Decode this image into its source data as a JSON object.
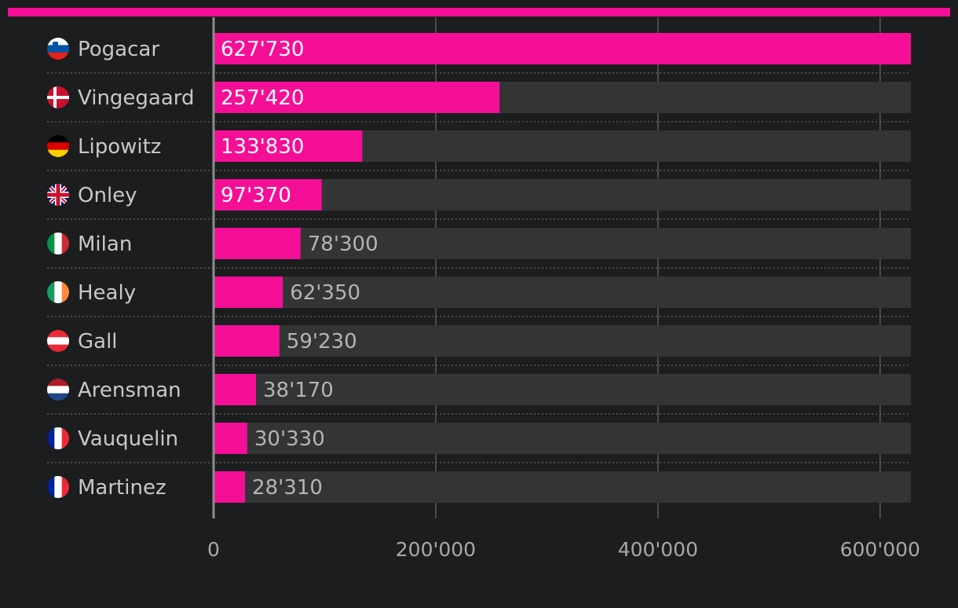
{
  "colors": {
    "background": "#1c1d1f",
    "accent": "#f50f96",
    "track": "#333436",
    "grid": "#5a5b5d",
    "axis": "#8c8c8c",
    "separator": "#5a5b5d"
  },
  "chart_data": {
    "type": "bar",
    "orientation": "horizontal",
    "categories": [
      "Pogacar",
      "Vingegaard",
      "Lipowitz",
      "Onley",
      "Milan",
      "Healy",
      "Gall",
      "Arensman",
      "Vauquelin",
      "Martinez"
    ],
    "values": [
      627730,
      257420,
      133830,
      97370,
      78300,
      62350,
      59230,
      38170,
      30330,
      28310
    ],
    "value_labels": [
      "627'730",
      "257'420",
      "133'830",
      "97'370",
      "78'300",
      "62'350",
      "59'230",
      "38'170",
      "30'330",
      "28'310"
    ],
    "flags": [
      "slovenia-flag-icon",
      "denmark-flag-icon",
      "germany-flag-icon",
      "uk-flag-icon",
      "italy-flag-icon",
      "ireland-flag-icon",
      "austria-flag-icon",
      "netherlands-flag-icon",
      "france-flag-icon",
      "france-flag-icon"
    ],
    "xticks": [
      0,
      200000,
      400000,
      600000
    ],
    "xtick_labels": [
      "0",
      "200'000",
      "400'000",
      "600'000"
    ],
    "xlim": [
      0,
      627730
    ],
    "grid": true,
    "title": "",
    "xlabel": "",
    "ylabel": ""
  }
}
